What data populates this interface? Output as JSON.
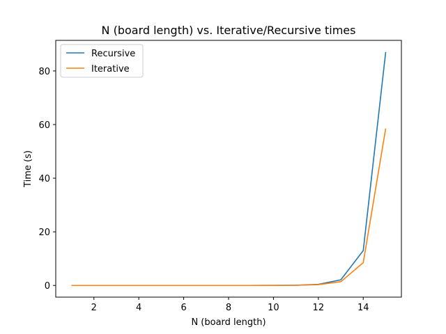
{
  "chart_data": {
    "type": "line",
    "title": "N (board length) vs. Iterative/Recursive times",
    "xlabel": "N (board length)",
    "ylabel": "Time (s)",
    "x": [
      1,
      2,
      3,
      4,
      5,
      6,
      7,
      8,
      9,
      10,
      11,
      12,
      13,
      14,
      15
    ],
    "xlim": [
      0.3,
      15.7
    ],
    "ylim": [
      -4.35,
      91.4
    ],
    "xticks": [
      2,
      4,
      6,
      8,
      10,
      12,
      14
    ],
    "yticks": [
      0,
      20,
      40,
      60,
      80
    ],
    "grid": false,
    "legend_position": "upper-left",
    "series": [
      {
        "name": "Recursive",
        "color": "#1f77b4",
        "values": [
          0.0,
          0.0,
          0.0,
          0.0,
          0.0,
          0.0,
          0.0,
          0.0,
          0.0,
          0.02,
          0.08,
          0.4,
          2.1,
          13.0,
          87.0
        ]
      },
      {
        "name": "Iterative",
        "color": "#ff7f0e",
        "values": [
          0.0,
          0.0,
          0.0,
          0.0,
          0.0,
          0.0,
          0.0,
          0.0,
          0.0,
          0.02,
          0.06,
          0.3,
          1.4,
          8.5,
          58.5
        ]
      }
    ]
  }
}
